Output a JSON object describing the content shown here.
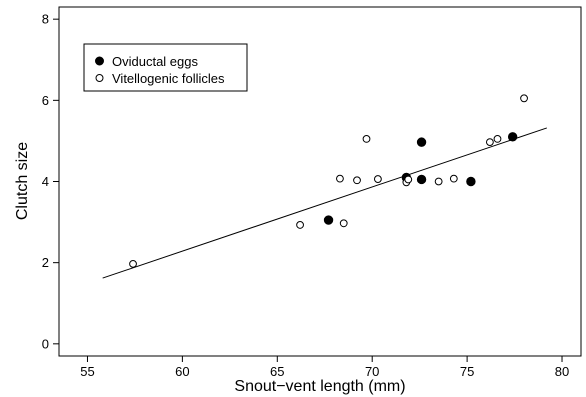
{
  "chart_data": {
    "type": "scatter",
    "title": "",
    "xlabel": "Snout−vent length (mm)",
    "ylabel": "Clutch size",
    "xlim": [
      53.5,
      81
    ],
    "ylim": [
      -0.3,
      8.3
    ],
    "xticks": [
      55,
      60,
      65,
      70,
      75,
      80
    ],
    "yticks": [
      0,
      2,
      4,
      6,
      8
    ],
    "grid": false,
    "legend": {
      "placement": "top-left",
      "entries": [
        {
          "label": "Oviductal eggs",
          "marker": "filled-circle"
        },
        {
          "label": "Vitellogenic follicles",
          "marker": "open-circle"
        }
      ]
    },
    "series": [
      {
        "name": "Oviductal eggs",
        "marker": "filled-circle",
        "x": [
          67.7,
          71.8,
          72.6,
          72.6,
          75.2,
          77.4
        ],
        "y": [
          3.05,
          4.1,
          4.97,
          4.05,
          4.0,
          5.1
        ]
      },
      {
        "name": "Vitellogenic follicles",
        "marker": "open-circle",
        "x": [
          57.4,
          66.2,
          68.3,
          68.5,
          69.2,
          69.7,
          70.3,
          71.8,
          71.9,
          73.5,
          74.3,
          76.2,
          76.6,
          78.0
        ],
        "y": [
          1.97,
          2.93,
          4.07,
          2.97,
          4.03,
          5.05,
          4.06,
          3.98,
          4.05,
          4.0,
          4.07,
          4.97,
          5.05,
          6.05
        ]
      }
    ],
    "fit_line": {
      "type": "linear",
      "x": [
        55.8,
        79.2
      ],
      "y": [
        1.62,
        5.32
      ]
    },
    "colors": {
      "marker_fill": "#000000",
      "marker_edge": "#000000",
      "line": "#000000",
      "axis": "#000000"
    }
  }
}
